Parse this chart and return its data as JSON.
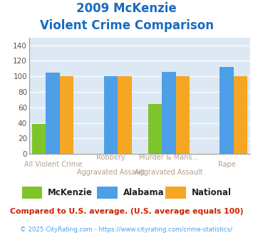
{
  "title_line1": "2009 McKenzie",
  "title_line2": "Violent Crime Comparison",
  "x_labels_top": [
    "",
    "Robbery",
    "Murder & Mans...",
    ""
  ],
  "x_labels_bottom": [
    "All Violent Crime",
    "Aggravated Assault",
    "Aggravated Assault",
    "Rape"
  ],
  "series": {
    "McKenzie": [
      39,
      0,
      64,
      0
    ],
    "Alabama": [
      105,
      100,
      106,
      112
    ],
    "National": [
      100,
      100,
      100,
      100
    ]
  },
  "colors": {
    "McKenzie": "#7dc52a",
    "Alabama": "#4d9fe8",
    "National": "#f5a623"
  },
  "ylim": [
    0,
    150
  ],
  "yticks": [
    0,
    20,
    40,
    60,
    80,
    100,
    120,
    140
  ],
  "title_color": "#1a6bbf",
  "plot_bg": "#dce9f5",
  "footnote1": "Compared to U.S. average. (U.S. average equals 100)",
  "footnote2": "© 2025 CityRating.com - https://www.cityrating.com/crime-statistics/",
  "footnote1_color": "#cc2200",
  "footnote2_color": "#4d9fe8",
  "xlabel_color": "#b0a090"
}
